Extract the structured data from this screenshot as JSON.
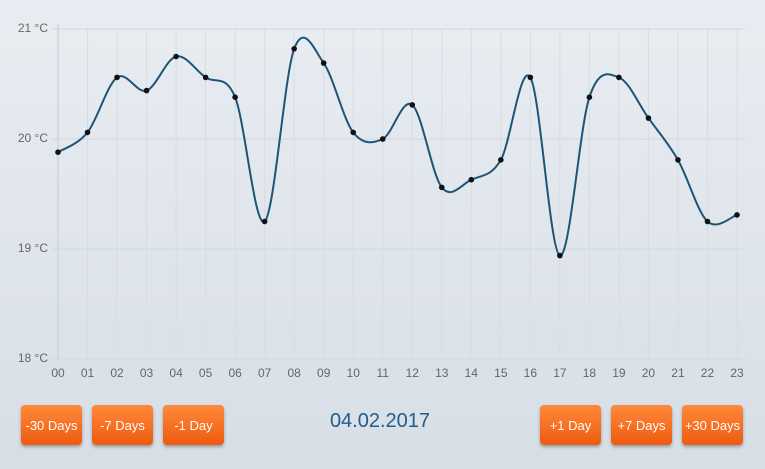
{
  "chart_data": {
    "type": "line",
    "categories": [
      "00",
      "01",
      "02",
      "03",
      "04",
      "05",
      "06",
      "07",
      "08",
      "09",
      "10",
      "11",
      "12",
      "13",
      "14",
      "15",
      "16",
      "17",
      "18",
      "19",
      "20",
      "21",
      "22",
      "23"
    ],
    "series": [
      {
        "color": "#1d5577",
        "values": [
          19.88,
          20.06,
          20.56,
          20.44,
          20.75,
          20.56,
          20.38,
          19.25,
          20.82,
          20.69,
          20.06,
          20.0,
          20.31,
          19.56,
          19.63,
          19.81,
          20.56,
          18.94,
          20.38,
          20.56,
          20.19,
          19.81,
          19.25,
          19.31
        ]
      }
    ],
    "ylim": [
      18,
      21
    ],
    "yticks": [
      {
        "value": 18,
        "label": "18 °C"
      },
      {
        "value": 19,
        "label": "19 °C"
      },
      {
        "value": 20,
        "label": "20 °C"
      },
      {
        "value": 21,
        "label": "21 °C"
      }
    ],
    "grid": true
  },
  "controls": {
    "back": [
      "-30 Days",
      "-7 Days",
      "-1 Day"
    ],
    "date": "04.02.2017",
    "forward": [
      "+1 Day",
      "+7 Days",
      "+30 Days"
    ]
  }
}
